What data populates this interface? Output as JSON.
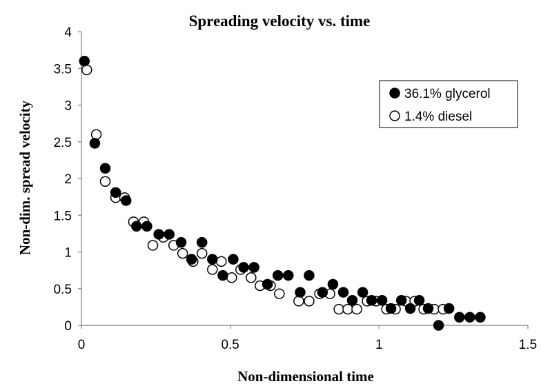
{
  "chart_data": {
    "type": "scatter",
    "title": "Spreading velocity vs. time",
    "xlabel": "Non-dimensional time",
    "ylabel": "Non-dim. spread velocity",
    "xlim": [
      0,
      1.5
    ],
    "ylim": [
      0,
      4
    ],
    "xticks": [
      "0",
      "0.5",
      "1",
      "1.5"
    ],
    "yticks": [
      "0",
      "0.5",
      "1",
      "1.5",
      "2",
      "2.5",
      "3",
      "3.5",
      "4"
    ],
    "grid": false,
    "legend_position": "top-right",
    "series": [
      {
        "name": "36.1% glycerol",
        "marker": "filled-circle",
        "color": "#000000",
        "x": [
          0.01,
          0.045,
          0.08,
          0.115,
          0.15,
          0.185,
          0.22,
          0.26,
          0.295,
          0.335,
          0.37,
          0.405,
          0.44,
          0.475,
          0.51,
          0.545,
          0.58,
          0.625,
          0.66,
          0.695,
          0.735,
          0.765,
          0.81,
          0.845,
          0.88,
          0.91,
          0.945,
          0.975,
          1.01,
          1.04,
          1.075,
          1.105,
          1.135,
          1.165,
          1.2,
          1.235,
          1.27,
          1.305,
          1.34
        ],
        "y": [
          3.6,
          2.48,
          2.14,
          1.81,
          1.7,
          1.35,
          1.35,
          1.24,
          1.24,
          1.13,
          0.9,
          1.13,
          0.9,
          0.68,
          0.9,
          0.79,
          0.79,
          0.56,
          0.68,
          0.68,
          0.45,
          0.68,
          0.45,
          0.56,
          0.45,
          0.34,
          0.45,
          0.34,
          0.34,
          0.23,
          0.34,
          0.23,
          0.34,
          0.23,
          0.0,
          0.23,
          0.11,
          0.11,
          0.11
        ]
      },
      {
        "name": "1.4% diesel",
        "marker": "open-circle",
        "color": "#000000",
        "x": [
          0.018,
          0.05,
          0.08,
          0.115,
          0.145,
          0.175,
          0.21,
          0.24,
          0.275,
          0.31,
          0.34,
          0.375,
          0.405,
          0.44,
          0.47,
          0.505,
          0.535,
          0.57,
          0.6,
          0.635,
          0.665,
          0.73,
          0.765,
          0.8,
          0.835,
          0.865,
          0.895,
          0.925,
          0.96,
          0.99,
          1.025,
          1.055,
          1.09,
          1.12,
          1.15,
          1.185,
          1.215
        ],
        "y": [
          3.48,
          2.6,
          1.96,
          1.74,
          1.74,
          1.41,
          1.41,
          1.09,
          1.2,
          1.09,
          0.98,
          0.87,
          0.98,
          0.76,
          0.87,
          0.65,
          0.76,
          0.65,
          0.54,
          0.54,
          0.43,
          0.33,
          0.33,
          0.43,
          0.43,
          0.22,
          0.22,
          0.22,
          0.33,
          0.33,
          0.22,
          0.22,
          0.33,
          0.33,
          0.22,
          0.22,
          0.22
        ]
      }
    ]
  }
}
